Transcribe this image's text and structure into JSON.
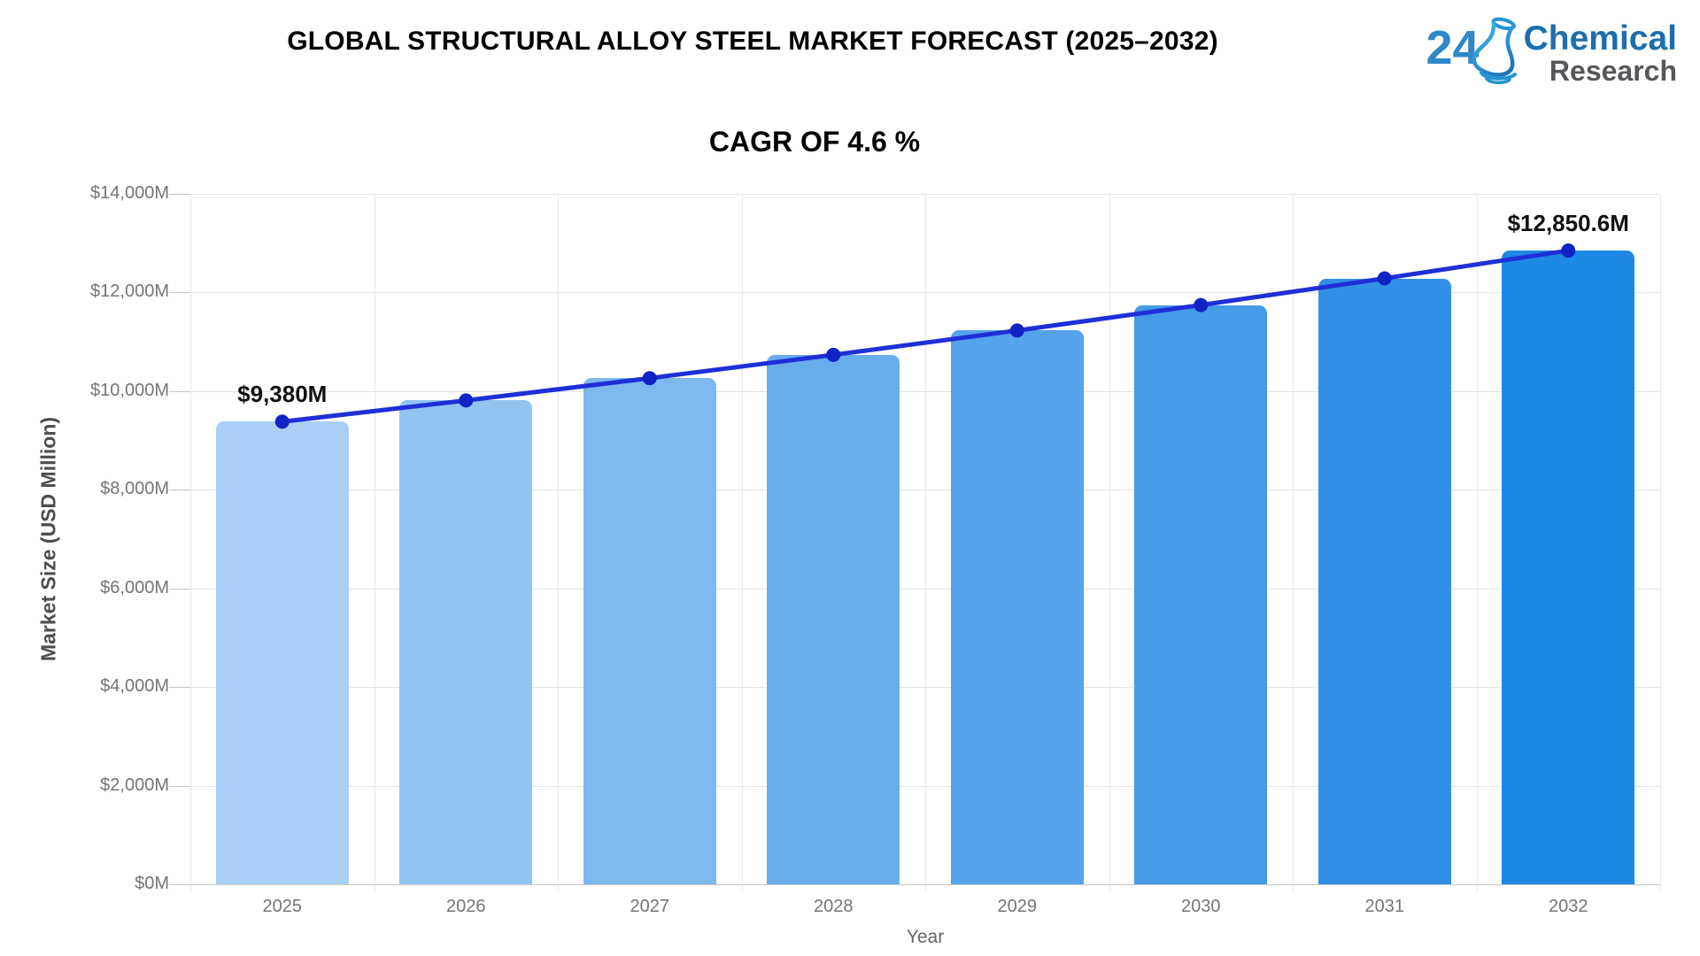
{
  "header": {
    "logo": {
      "number": "24",
      "line1": "Chemical",
      "line2": "Research",
      "icon": "flask-icon",
      "blue": "#1d6eae",
      "gray": "#55565a"
    }
  },
  "chart_data": {
    "type": "bar",
    "title": "GLOBAL STRUCTURAL ALLOY STEEL MARKET FORECAST (2025–2032)",
    "subtitle": "CAGR OF 4.6 %",
    "xlabel": "Year",
    "ylabel": "Market Size (USD Million)",
    "categories": [
      "2025",
      "2026",
      "2027",
      "2028",
      "2029",
      "2030",
      "2031",
      "2032"
    ],
    "series": [
      {
        "name": "Market Size (bars)",
        "type": "bar",
        "values": [
          9380,
          9811.5,
          10262.8,
          10734.9,
          11228.7,
          11745.2,
          12285.5,
          12850.6
        ],
        "bar_colors": [
          "#a9cff4",
          "#92c4f1",
          "#7db9ee",
          "#68adec",
          "#55a3ea",
          "#459be8",
          "#3190e6",
          "#1e88e5"
        ]
      },
      {
        "name": "Trend line",
        "type": "line",
        "values": [
          9380,
          9811.5,
          10262.8,
          10734.9,
          11228.7,
          11745.2,
          12285.5,
          12850.6
        ],
        "line_color": "#1f2fd8",
        "dot_color": "#1023c4"
      }
    ],
    "point_labels": [
      "$9,380M",
      "",
      "",
      "",
      "",
      "",
      "",
      "$12,850.6M"
    ],
    "ylim": [
      0,
      14000
    ],
    "ytick_step": 2000,
    "ytick_labels": [
      "$0M",
      "$2,000M",
      "$4,000M",
      "$6,000M",
      "$8,000M",
      "$10,000M",
      "$12,000M",
      "$14,000M"
    ],
    "grid": true,
    "legend": "none"
  }
}
